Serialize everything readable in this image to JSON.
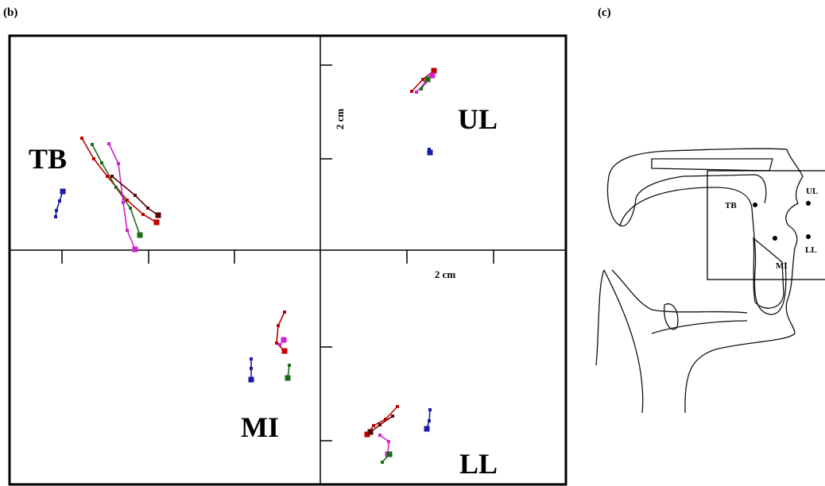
{
  "panel_b": {
    "label": "(b)",
    "regions": [
      "TB",
      "UL",
      "MI",
      "LL"
    ],
    "scale_vertical": "2 cm",
    "scale_horizontal": "2 cm"
  },
  "panel_c": {
    "label": "(c)",
    "points": [
      "TB",
      "UL",
      "MI",
      "LL"
    ]
  }
}
